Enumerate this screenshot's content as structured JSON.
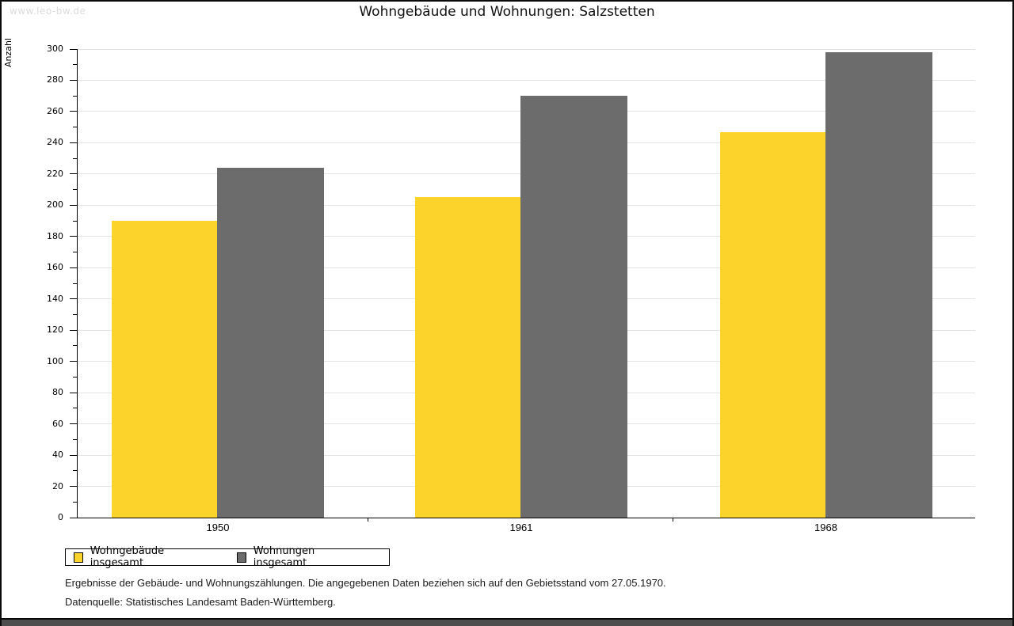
{
  "watermark": "www.leo-bw.de",
  "title": "Wohngebäude und Wohnungen: Salzstetten",
  "chart_data": {
    "type": "bar",
    "title": "Wohngebäude und Wohnungen: Salzstetten",
    "categories": [
      "1950",
      "1961",
      "1968"
    ],
    "series": [
      {
        "name": "Wohngebäude insgesamt",
        "color": "#FCD32B",
        "values": [
          190,
          205,
          247
        ]
      },
      {
        "name": "Wohnungen insgesamt",
        "color": "#6C6C6C",
        "values": [
          224,
          270,
          298
        ]
      }
    ],
    "xlabel": "",
    "ylabel": "Anzahl",
    "ylim": [
      0,
      300
    ],
    "ytick_step": 20,
    "minor_tick_step": 10,
    "grid": true,
    "legend_position": "bottom-left"
  },
  "footer": {
    "line1": "Ergebnisse der Gebäude- und Wohnungszählungen. Die angegebenen Daten beziehen sich auf den Gebietsstand vom 27.05.1970.",
    "line2": "Datenquelle: Statistisches Landesamt Baden-Württemberg."
  },
  "colors": {
    "bar_yellow": "#FCD32B",
    "bar_gray": "#6C6C6C",
    "gridline": "#E3E3E3",
    "watermark": "#DBDBDB",
    "bottom_strip": "#4D4D4D",
    "axis": "#000000"
  }
}
